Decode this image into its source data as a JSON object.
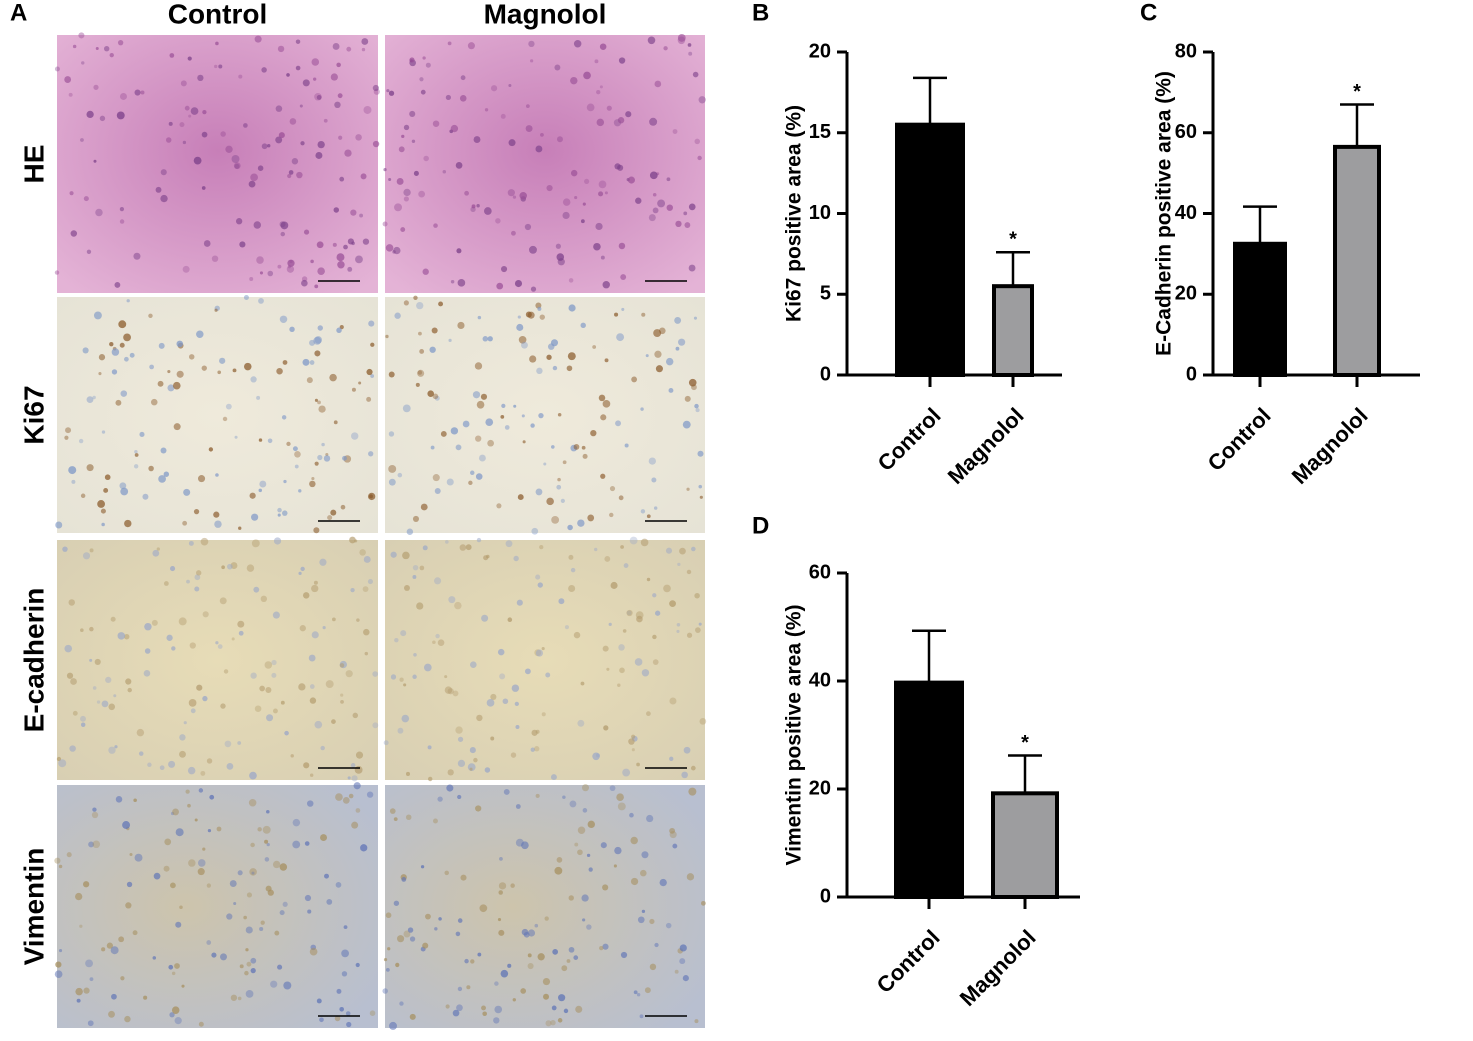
{
  "panel_a": {
    "label": "A",
    "columns": [
      "Control",
      "Magnolol"
    ],
    "rows": [
      "HE",
      "Ki67",
      "E-cadherin",
      "Vimentin"
    ]
  },
  "chart_data": [
    {
      "type": "bar",
      "label": "B",
      "ylabel": "Ki67 positive area (%)",
      "categories": [
        "Control",
        "Magnolol"
      ],
      "values": [
        15.5,
        5.5
      ],
      "errors": [
        2.9,
        2.1
      ],
      "colors": [
        "#000000",
        "#9d9d9f"
      ],
      "ylim": [
        0,
        20
      ],
      "yticks": [
        0,
        5,
        10,
        15,
        20
      ],
      "annotations": [
        {
          "category": "Magnolol",
          "text": "*"
        }
      ]
    },
    {
      "type": "bar",
      "label": "C",
      "ylabel": "E-Cadherin positive area (%)",
      "categories": [
        "Control",
        "Magnolol"
      ],
      "values": [
        32.5,
        56.5
      ],
      "errors": [
        9.2,
        10.5
      ],
      "colors": [
        "#000000",
        "#9d9d9f"
      ],
      "ylim": [
        0,
        80
      ],
      "yticks": [
        0,
        20,
        40,
        60,
        80
      ],
      "annotations": [
        {
          "category": "Magnolol",
          "text": "*"
        }
      ]
    },
    {
      "type": "bar",
      "label": "D",
      "ylabel": "Vimentin positive area (%)",
      "categories": [
        "Control",
        "Magnolol"
      ],
      "values": [
        39.7,
        19.2
      ],
      "errors": [
        9.6,
        7.0
      ],
      "colors": [
        "#000000",
        "#9d9d9f"
      ],
      "ylim": [
        0,
        60
      ],
      "yticks": [
        0,
        20,
        40,
        60
      ],
      "annotations": [
        {
          "category": "Magnolol",
          "text": "*"
        }
      ]
    }
  ]
}
